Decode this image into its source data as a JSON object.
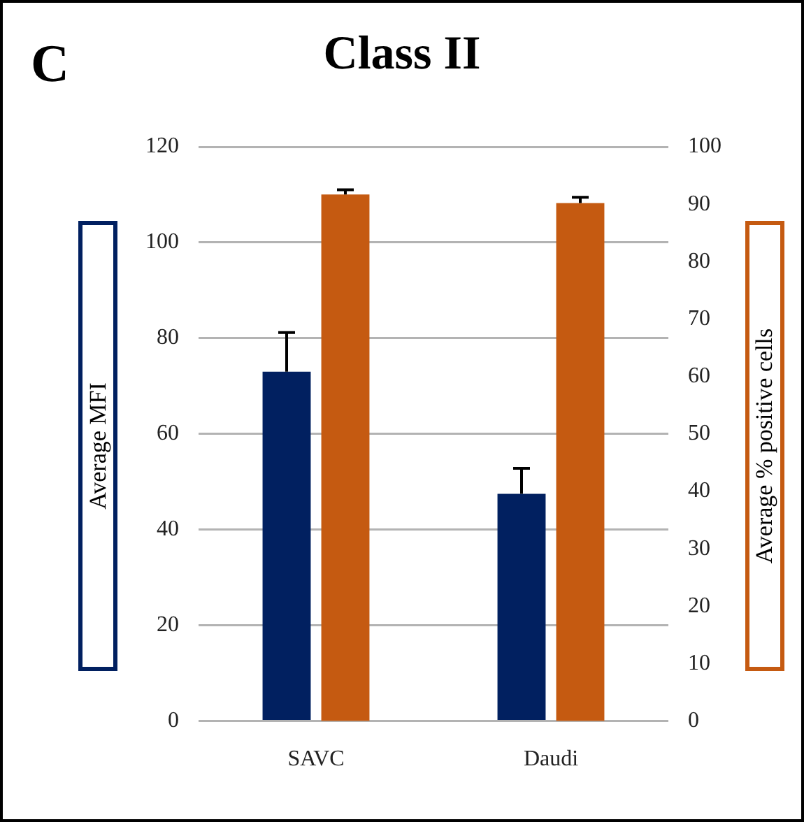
{
  "chart_data": {
    "type": "bar",
    "title": "Class II",
    "ylabel": "Average MFI",
    "y2label": "Average % positive cells",
    "annotations": [
      "C"
    ],
    "categories": [
      "SAVC",
      "Daudi"
    ],
    "series": [
      {
        "color": "#012060",
        "values": [
          73,
          47.5
        ],
        "errors": [
          [
            73,
            81.2
          ],
          [
            47.5,
            52.8
          ]
        ]
      },
      {
        "color": "#c55a11",
        "axis": "y2",
        "values": [
          91.7,
          90.2
        ],
        "errors": [
          [
            91.7,
            92.5
          ],
          [
            90.2,
            91.2
          ]
        ]
      }
    ],
    "ylim": [
      0,
      120
    ],
    "yticks": [
      0,
      20,
      40,
      60,
      80,
      100,
      120
    ],
    "y2lim": [
      0,
      100
    ],
    "y2ticks": [
      0,
      10,
      20,
      30,
      40,
      50,
      60,
      70,
      80,
      90,
      100
    ],
    "grid": "y",
    "legend": false
  }
}
